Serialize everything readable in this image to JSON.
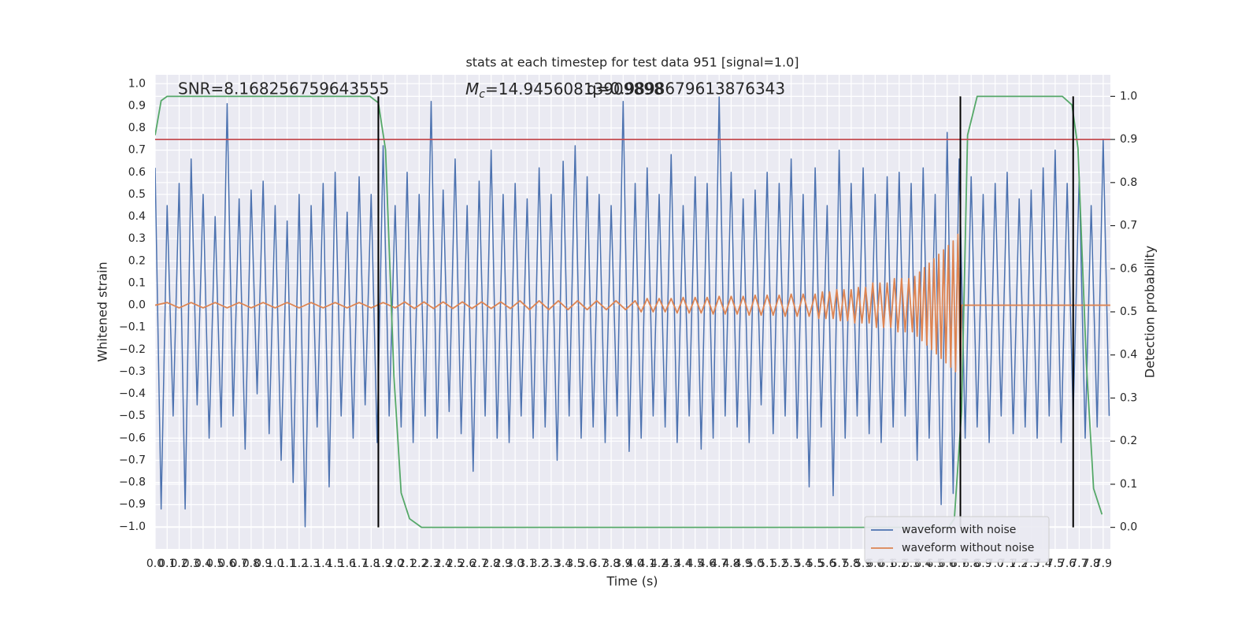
{
  "chart_data": {
    "type": "line",
    "title": "stats at each timestep for test data 951 [signal=1.0]",
    "xlabel": "Time (s)",
    "ylabel": "Whitened strain",
    "y2label": "Detection probability",
    "snr_text": "SNR=8.168256759643555",
    "mc_symbol": "M",
    "mc_subscript": "c",
    "mc_text": "=14.94560813909898",
    "extra_text": "q=0.9898679613876343",
    "background": "#eaeaf2",
    "grid": true,
    "legend": "lower right",
    "xlim": [
      0,
      7.96
    ],
    "ylim": [
      -1.1,
      1.04
    ],
    "y2lim": [
      -0.05,
      1.05
    ],
    "xticks": [
      {
        "value": 0,
        "label": "0.0"
      },
      0.1,
      0.2,
      0.3,
      0.4,
      0.5,
      0.6,
      0.7,
      0.8,
      0.9,
      {
        "value": 1,
        "label": "1.0"
      },
      1.1,
      1.2,
      1.3,
      1.4,
      1.5,
      1.6,
      1.7,
      1.8,
      1.9,
      {
        "value": 2,
        "label": "2.0"
      },
      2.1,
      2.2,
      2.3,
      2.4,
      2.5,
      2.6,
      2.7,
      2.8,
      2.9,
      {
        "value": 3,
        "label": "3.0"
      },
      3.1,
      3.2,
      3.3,
      3.4,
      3.5,
      3.6,
      3.7,
      3.8,
      3.9,
      {
        "value": 4,
        "label": "4.0"
      },
      4.1,
      4.2,
      4.3,
      4.4,
      4.5,
      4.6,
      4.7,
      4.8,
      4.9,
      {
        "value": 5,
        "label": "5.0"
      },
      5.1,
      5.2,
      5.3,
      5.4,
      5.5,
      5.6,
      5.7,
      5.8,
      5.9,
      {
        "value": 6,
        "label": "6.0"
      },
      6.1,
      6.2,
      6.3,
      6.4,
      6.5,
      6.6,
      6.7,
      6.8,
      6.9,
      {
        "value": 7,
        "label": "7.0"
      },
      7.1,
      7.2,
      7.3,
      7.4,
      7.5,
      7.6,
      7.7,
      7.8,
      7.9
    ],
    "yticks": [
      {
        "value": -1,
        "label": "−1.0"
      },
      {
        "value": -0.9,
        "label": "−0.9"
      },
      {
        "value": -0.8,
        "label": "−0.8"
      },
      {
        "value": -0.7,
        "label": "−0.7"
      },
      {
        "value": -0.6,
        "label": "−0.6"
      },
      {
        "value": -0.5,
        "label": "−0.5"
      },
      {
        "value": -0.4,
        "label": "−0.4"
      },
      {
        "value": -0.3,
        "label": "−0.3"
      },
      {
        "value": -0.2,
        "label": "−0.2"
      },
      {
        "value": -0.1,
        "label": "−0.1"
      },
      {
        "value": 0,
        "label": "0.0"
      },
      0.1,
      0.2,
      0.3,
      0.4,
      0.5,
      0.6,
      0.7,
      0.8,
      0.9,
      {
        "value": 1,
        "label": "1.0"
      }
    ],
    "y2ticks": [
      {
        "value": 0,
        "label": "0.0"
      },
      0.1,
      0.2,
      0.3,
      0.4,
      0.5,
      0.6,
      0.7,
      0.8,
      0.9,
      {
        "value": 1,
        "label": "1.0"
      }
    ],
    "series": [
      {
        "name": "waveform with noise",
        "color": "#4c72b0",
        "x": [
          0,
          0.05,
          0.1,
          0.15,
          0.2,
          0.25,
          0.3,
          0.35,
          0.4,
          0.45,
          0.5,
          0.55,
          0.6,
          0.65,
          0.7,
          0.75,
          0.8,
          0.85,
          0.9,
          0.95,
          1,
          1.05,
          1.1,
          1.15,
          1.2,
          1.25,
          1.3,
          1.35,
          1.4,
          1.45,
          1.5,
          1.55,
          1.6,
          1.65,
          1.7,
          1.75,
          1.8,
          1.85,
          1.9,
          1.95,
          2,
          2.05,
          2.1,
          2.15,
          2.2,
          2.25,
          2.3,
          2.35,
          2.4,
          2.45,
          2.5,
          2.55,
          2.6,
          2.65,
          2.7,
          2.75,
          2.8,
          2.85,
          2.9,
          2.95,
          3,
          3.05,
          3.1,
          3.15,
          3.2,
          3.25,
          3.3,
          3.35,
          3.4,
          3.45,
          3.5,
          3.55,
          3.6,
          3.65,
          3.7,
          3.75,
          3.8,
          3.85,
          3.9,
          3.95,
          4,
          4.05,
          4.1,
          4.15,
          4.2,
          4.25,
          4.3,
          4.35,
          4.4,
          4.45,
          4.5,
          4.55,
          4.6,
          4.65,
          4.7,
          4.75,
          4.8,
          4.85,
          4.9,
          4.95,
          5,
          5.05,
          5.1,
          5.15,
          5.2,
          5.25,
          5.3,
          5.35,
          5.4,
          5.45,
          5.5,
          5.55,
          5.6,
          5.65,
          5.7,
          5.75,
          5.8,
          5.85,
          5.9,
          5.95,
          6,
          6.05,
          6.1,
          6.15,
          6.2,
          6.25,
          6.3,
          6.35,
          6.4,
          6.45,
          6.5,
          6.55,
          6.6,
          6.65,
          6.7,
          6.75,
          6.8,
          6.85,
          6.9,
          6.95,
          7,
          7.05,
          7.1,
          7.15,
          7.2,
          7.25,
          7.3,
          7.35,
          7.4,
          7.45,
          7.5,
          7.55,
          7.6,
          7.65,
          7.7,
          7.75,
          7.8,
          7.85,
          7.9,
          7.95
        ],
        "values": [
          0.62,
          -0.92,
          0.45,
          -0.5,
          0.55,
          -0.92,
          0.66,
          -0.45,
          0.5,
          -0.6,
          0.4,
          -0.55,
          0.91,
          -0.5,
          0.48,
          -0.65,
          0.52,
          -0.4,
          0.56,
          -0.58,
          0.45,
          -0.7,
          0.38,
          -0.8,
          0.5,
          -1.0,
          0.45,
          -0.55,
          0.55,
          -0.82,
          0.6,
          -0.5,
          0.42,
          -0.6,
          0.58,
          -0.45,
          0.5,
          -0.62,
          0.72,
          -0.5,
          0.45,
          -0.55,
          0.6,
          -0.62,
          0.5,
          -0.5,
          0.92,
          -0.6,
          0.52,
          -0.48,
          0.66,
          -0.58,
          0.45,
          -0.75,
          0.56,
          -0.5,
          0.7,
          -0.6,
          0.5,
          -0.62,
          0.55,
          -0.5,
          0.48,
          -0.6,
          0.62,
          -0.55,
          0.5,
          -0.7,
          0.65,
          -0.5,
          0.72,
          -0.6,
          0.58,
          -0.55,
          0.5,
          -0.62,
          0.45,
          -0.5,
          0.92,
          -0.66,
          0.55,
          -0.6,
          0.62,
          -0.5,
          0.5,
          -0.55,
          0.68,
          -0.62,
          0.45,
          -0.5,
          0.58,
          -0.65,
          0.55,
          -0.6,
          0.94,
          -0.5,
          0.6,
          -0.55,
          0.48,
          -0.62,
          0.52,
          -0.45,
          0.6,
          -0.58,
          0.55,
          -0.5,
          0.66,
          -0.6,
          0.5,
          -0.82,
          0.62,
          -0.55,
          0.45,
          -0.86,
          0.7,
          -0.6,
          0.55,
          -0.5,
          0.62,
          -0.58,
          0.5,
          -0.62,
          0.58,
          -0.55,
          0.6,
          -0.5,
          0.55,
          -0.7,
          0.62,
          -0.6,
          0.5,
          -0.9,
          0.78,
          -0.85,
          0.66,
          -0.6,
          0.58,
          -0.55,
          0.5,
          -0.62,
          0.55,
          -0.5,
          0.6,
          -0.58,
          0.48,
          -0.55,
          0.52,
          -0.6,
          0.62,
          -0.5,
          0.7,
          -0.62,
          0.55,
          -0.5,
          0.58,
          -0.6,
          0.45,
          -0.55,
          0.75,
          -0.5
        ]
      },
      {
        "name": "waveform without noise",
        "color": "#dd8452",
        "x": [
          0,
          0.1,
          0.2,
          0.3,
          0.4,
          0.5,
          0.6,
          0.7,
          0.8,
          0.9,
          1,
          1.1,
          1.2,
          1.3,
          1.4,
          1.5,
          1.6,
          1.7,
          1.8,
          1.9,
          2,
          2.08,
          2.16,
          2.24,
          2.32,
          2.4,
          2.48,
          2.56,
          2.64,
          2.72,
          2.8,
          2.88,
          2.96,
          3.04,
          3.12,
          3.2,
          3.28,
          3.36,
          3.44,
          3.52,
          3.6,
          3.68,
          3.76,
          3.84,
          3.92,
          4,
          4.05,
          4.1,
          4.15,
          4.2,
          4.25,
          4.3,
          4.35,
          4.4,
          4.45,
          4.5,
          4.55,
          4.6,
          4.65,
          4.7,
          4.75,
          4.8,
          4.85,
          4.9,
          4.95,
          5,
          5.05,
          5.1,
          5.15,
          5.2,
          5.25,
          5.3,
          5.35,
          5.4,
          5.45,
          5.5,
          5.53,
          5.56,
          5.59,
          5.62,
          5.65,
          5.68,
          5.71,
          5.74,
          5.77,
          5.8,
          5.83,
          5.86,
          5.89,
          5.92,
          5.95,
          5.98,
          6.01,
          6.04,
          6.07,
          6.1,
          6.13,
          6.16,
          6.19,
          6.22,
          6.25,
          6.28,
          6.31,
          6.33,
          6.35,
          6.37,
          6.39,
          6.41,
          6.43,
          6.45,
          6.47,
          6.49,
          6.51,
          6.53,
          6.55,
          6.57,
          6.59,
          6.61,
          6.63,
          6.65,
          6.67,
          6.69,
          6.71,
          6.72,
          7.96
        ],
        "values": [
          0,
          0.012,
          -0.012,
          0.012,
          -0.012,
          0.012,
          -0.012,
          0.012,
          -0.012,
          0.012,
          -0.012,
          0.012,
          -0.012,
          0.012,
          -0.012,
          0.012,
          -0.012,
          0.012,
          -0.012,
          0.012,
          -0.012,
          0.015,
          -0.015,
          0.015,
          -0.015,
          0.015,
          -0.015,
          0.015,
          -0.015,
          0.015,
          -0.015,
          0.015,
          -0.015,
          0.02,
          -0.02,
          0.02,
          -0.02,
          0.02,
          -0.02,
          0.02,
          -0.02,
          0.02,
          -0.02,
          0.02,
          -0.02,
          0.02,
          -0.03,
          0.03,
          -0.03,
          0.03,
          -0.03,
          0.03,
          -0.035,
          0.035,
          -0.035,
          0.035,
          -0.035,
          0.035,
          -0.04,
          0.04,
          -0.04,
          0.04,
          -0.04,
          0.04,
          -0.045,
          0.045,
          -0.045,
          0.045,
          -0.045,
          0.045,
          -0.05,
          0.05,
          -0.05,
          0.05,
          -0.05,
          0.05,
          -0.06,
          0.06,
          -0.06,
          0.06,
          -0.06,
          0.07,
          -0.07,
          0.07,
          -0.07,
          0.07,
          -0.08,
          0.08,
          -0.08,
          0.08,
          -0.08,
          0.1,
          -0.1,
          0.1,
          -0.1,
          0.1,
          -0.1,
          0.12,
          -0.12,
          0.12,
          -0.12,
          0.12,
          -0.12,
          0.13,
          -0.14,
          0.15,
          -0.16,
          0.17,
          -0.18,
          0.19,
          -0.2,
          0.21,
          -0.22,
          0.23,
          -0.24,
          0.25,
          -0.26,
          0.27,
          -0.28,
          0.29,
          -0.3,
          0.32,
          -0.33,
          0,
          0
        ]
      },
      {
        "color": "#55a868",
        "axis": "y2",
        "x": [
          0,
          0.05,
          0.1,
          1.79,
          1.86,
          1.92,
          1.99,
          2.05,
          2.12,
          2.22,
          6.61,
          6.66,
          6.72,
          6.77,
          6.85,
          7.56,
          7.64,
          7.69,
          7.76,
          7.82,
          7.89
        ],
        "values": [
          0.91,
          0.99,
          1.0,
          1.0,
          0.985,
          0.876,
          0.35,
          0.08,
          0.02,
          0,
          0,
          0.02,
          0.27,
          0.91,
          1.0,
          1.0,
          0.98,
          0.88,
          0.38,
          0.09,
          0.03
        ]
      }
    ],
    "threshold": {
      "value": 0.9,
      "color": "#c44e52",
      "axis": "y2"
    },
    "vlines": {
      "x": [
        1.86,
        6.71,
        7.65
      ],
      "range": [
        0,
        1
      ],
      "color": "#000000",
      "axis": "y2"
    }
  }
}
